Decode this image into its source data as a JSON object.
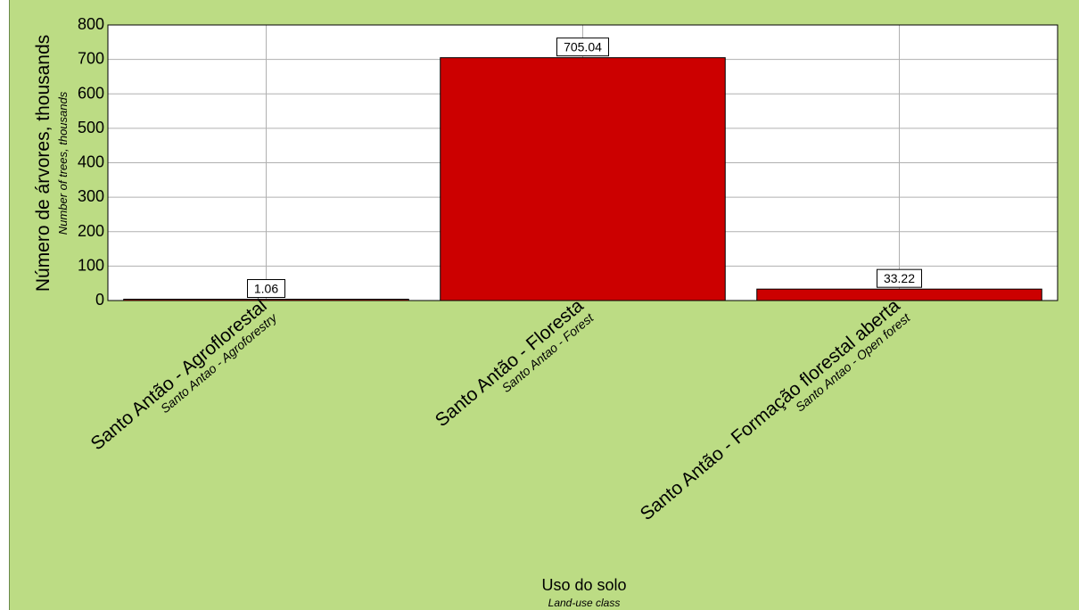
{
  "chart_data": {
    "type": "bar",
    "categories": [
      {
        "label": "Santo Antão - Agroflorestal",
        "sublabel": "Santo Antao - Agroforestry"
      },
      {
        "label": "Santo Antão - Floresta",
        "sublabel": "Santo Antao - Forest"
      },
      {
        "label": "Santo Antão - Formação florestal aberta",
        "sublabel": "Santo Antao - Open forest"
      }
    ],
    "values": [
      1.06,
      705.04,
      33.22
    ],
    "data_labels": [
      "1.06",
      "705.04",
      "33.22"
    ],
    "ylabel": "Número de árvores, thousands",
    "ylabel_sub": "Number of trees, thousands",
    "xlabel": "Uso do solo",
    "xlabel_sub": "Land-use class",
    "ylim": [
      0,
      800
    ],
    "yticks": [
      0,
      100,
      200,
      300,
      400,
      500,
      600,
      700,
      800
    ],
    "grid": true,
    "colors": {
      "bar": "#cc0000",
      "background": "#bcdc84",
      "plot_area": "#ffffff",
      "grid": "#b0b0b0"
    }
  }
}
